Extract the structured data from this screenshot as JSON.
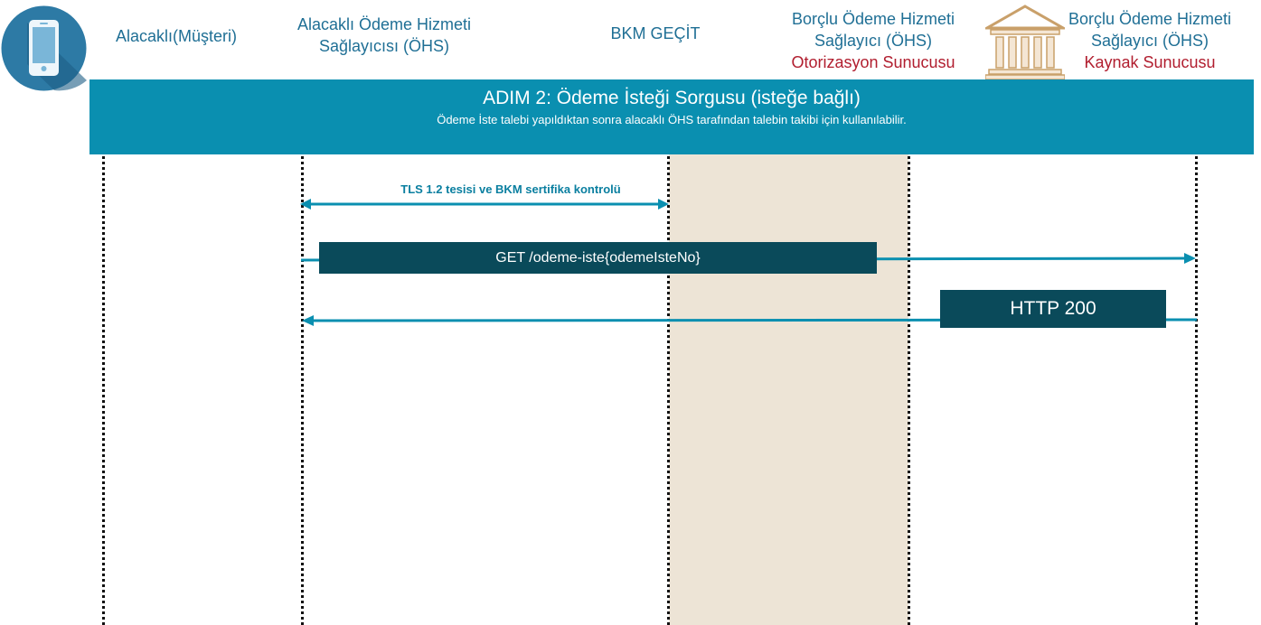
{
  "participants": [
    {
      "label": "Alacaklı(Müşteri)"
    },
    {
      "label": "Alacaklı Ödeme Hizmeti Sağlayıcısı (ÖHS)"
    },
    {
      "label": "BKM GEÇİT"
    },
    {
      "label": "Borçlu Ödeme Hizmeti Sağlayıcı (ÖHS)",
      "role": "Otorizasyon Sunucusu"
    },
    {
      "label": "Borçlu Ödeme Hizmeti Sağlayıcı (ÖHS)",
      "role": "Kaynak Sunucusu"
    }
  ],
  "step": {
    "title": "ADIM 2: Ödeme İsteği Sorgusu (isteğe bağlı)",
    "subtitle": "Ödeme İste talebi yapıldıktan sonra alacaklı ÖHS tarafından talebin takibi için kullanılabilir."
  },
  "messages": [
    {
      "label": "TLS 1.2 tesisi ve BKM sertifika kontrolü",
      "direction": "bidirectional"
    },
    {
      "label": "GET /odeme-iste{odemeIsteNo}",
      "direction": "forward"
    },
    {
      "label": "HTTP 200",
      "direction": "backward"
    }
  ],
  "colors": {
    "accent": "#0a8fb0",
    "message_box": "#0a4a5a",
    "header_text": "#1f6f95",
    "role_text": "#b11e2f",
    "gateway_shade": "#ede4d6"
  },
  "icons": [
    "smartphone-icon",
    "bank-icon"
  ]
}
